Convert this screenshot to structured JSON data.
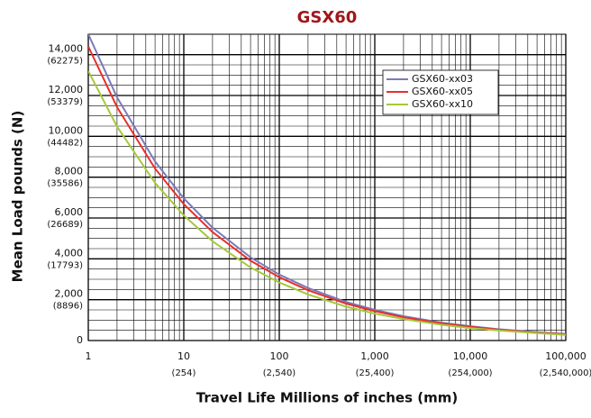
{
  "chart_data": {
    "type": "line",
    "title": "GSX60",
    "x_label": "Travel Life Millions of inches (mm)",
    "y_label": "Mean Load pounds (N)",
    "x_log": true,
    "x": [
      1,
      2,
      5,
      10,
      20,
      50,
      100,
      200,
      500,
      1000,
      2000,
      5000,
      10000,
      20000,
      50000,
      100000
    ],
    "series": [
      {
        "name": "GSX60-xx03",
        "color": "#7b7bb8",
        "values": [
          15000,
          11910,
          8770,
          6960,
          5530,
          4070,
          3230,
          2570,
          1890,
          1500,
          1190,
          880,
          700,
          550,
          410,
          320
        ]
      },
      {
        "name": "GSX60-xx05",
        "color": "#e8302a",
        "values": [
          14400,
          11430,
          8420,
          6680,
          5310,
          3910,
          3100,
          2460,
          1810,
          1440,
          1140,
          840,
          670,
          530,
          390,
          310
        ]
      },
      {
        "name": "GSX60-xx10",
        "color": "#a6c83a",
        "values": [
          13200,
          10480,
          7720,
          6130,
          4860,
          3580,
          2840,
          2260,
          1660,
          1320,
          1050,
          770,
          610,
          490,
          360,
          280
        ]
      }
    ],
    "xlim": [
      1,
      100000
    ],
    "xticks": [
      1,
      10,
      100,
      {
        "value": 1000,
        "label": "1,000"
      },
      {
        "value": 10000,
        "label": "10,000"
      },
      {
        "value": 100000,
        "label": "100,000"
      }
    ],
    "x_secondary_labels": [
      null,
      "(254)",
      "(2,540)",
      "(25,400)",
      "(254,000)",
      "(2,540,000)"
    ],
    "ylim": [
      0,
      15000
    ],
    "yticks": [
      0,
      {
        "value": 2000,
        "label": "2,000"
      },
      {
        "value": 4000,
        "label": "4,000"
      },
      {
        "value": 6000,
        "label": "6,000"
      },
      {
        "value": 8000,
        "label": "8,000"
      },
      {
        "value": 10000,
        "label": "10,000"
      },
      {
        "value": 12000,
        "label": "12,000"
      },
      {
        "value": 14000,
        "label": "14,000"
      }
    ],
    "y_secondary_labels": [
      null,
      "(8896)",
      "(17793)",
      "(26689)",
      "(35586)",
      "(44482)",
      "(53379)",
      "(62275)"
    ],
    "y_minor_divisions": 4,
    "grid": true,
    "legend": "upper right"
  }
}
